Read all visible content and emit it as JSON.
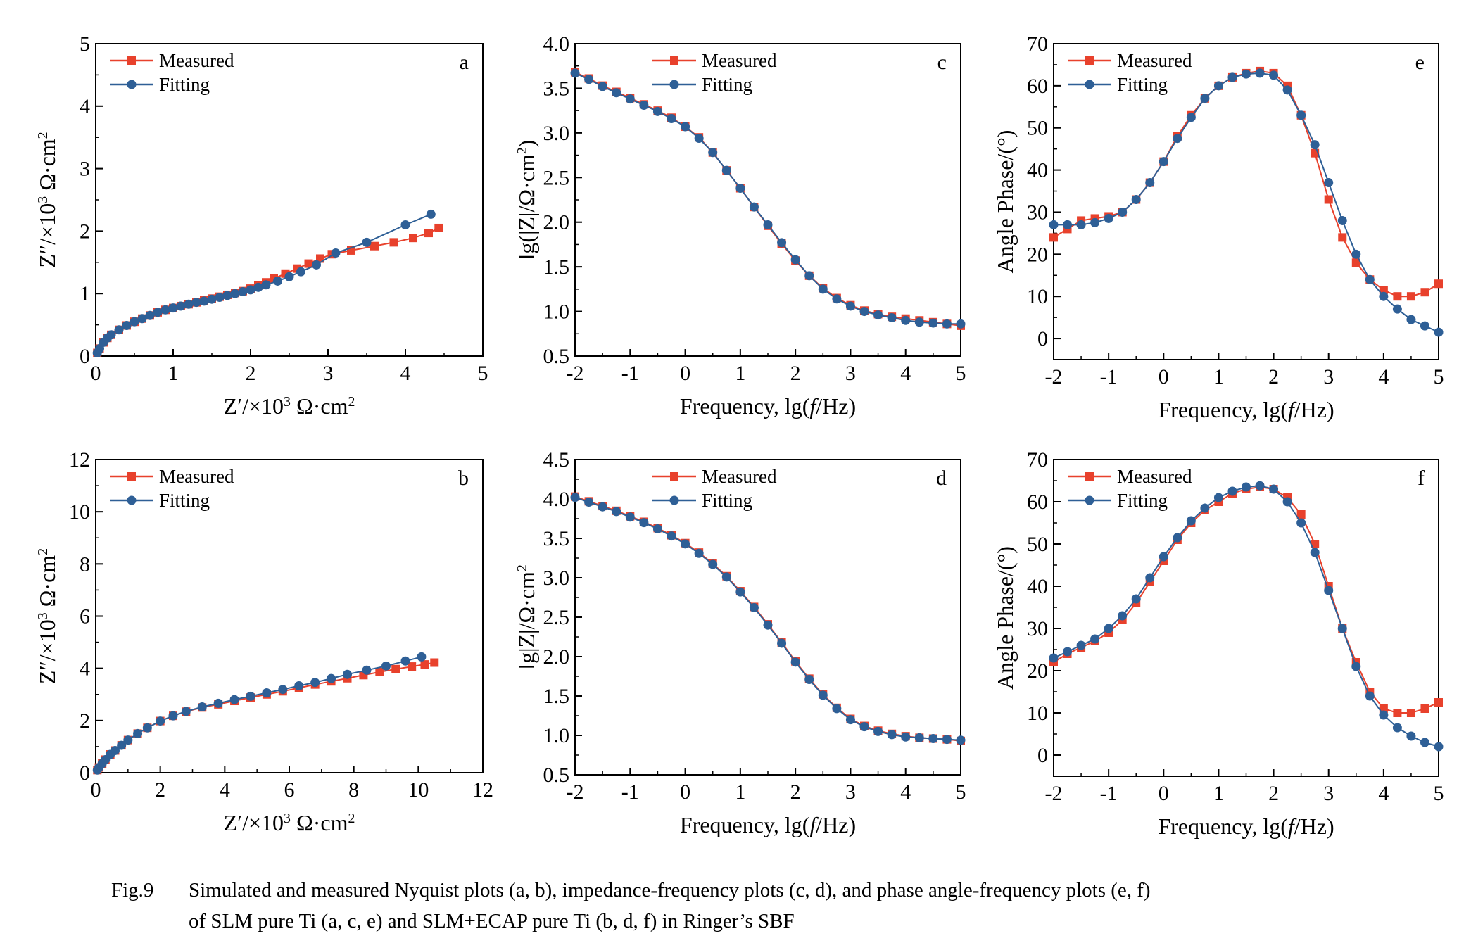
{
  "colors": {
    "measured": "#e8412c",
    "fitting": "#2e5f96",
    "axis": "#000000"
  },
  "caption": {
    "label": "Fig.9",
    "line1": "Simulated and measured Nyquist plots (a, b), impedance-frequency plots (c, d), and phase angle-frequency plots (e, f)",
    "line2": "of SLM pure Ti (a, c, e) and SLM+ECAP pure Ti (b, d, f) in Ringer’s SBF"
  },
  "chart_data": [
    {
      "id": "a",
      "type": "line",
      "panel_letter": "a",
      "xlabel": "Z′/×10³ Ω·cm²",
      "ylabel": "Z″/×10³ Ω·cm²",
      "xlim": [
        0,
        5
      ],
      "ylim": [
        0,
        5
      ],
      "xticks": [
        0,
        1,
        2,
        3,
        4,
        5
      ],
      "yticks": [
        0,
        1,
        2,
        3,
        4,
        5
      ],
      "legend_position": "top-left",
      "series": [
        {
          "name": "Measured",
          "marker": "square",
          "x": [
            0.02,
            0.05,
            0.1,
            0.15,
            0.2,
            0.3,
            0.4,
            0.5,
            0.6,
            0.7,
            0.8,
            0.9,
            1.0,
            1.1,
            1.2,
            1.3,
            1.4,
            1.5,
            1.6,
            1.7,
            1.8,
            1.9,
            2.0,
            2.1,
            2.2,
            2.3,
            2.45,
            2.6,
            2.75,
            2.9,
            3.05,
            3.3,
            3.6,
            3.85,
            4.1,
            4.3,
            4.43
          ],
          "y": [
            0.05,
            0.12,
            0.22,
            0.29,
            0.34,
            0.42,
            0.49,
            0.55,
            0.6,
            0.65,
            0.7,
            0.74,
            0.77,
            0.8,
            0.83,
            0.86,
            0.89,
            0.92,
            0.95,
            0.98,
            1.01,
            1.04,
            1.08,
            1.13,
            1.18,
            1.24,
            1.32,
            1.4,
            1.48,
            1.56,
            1.63,
            1.69,
            1.76,
            1.82,
            1.89,
            1.97,
            2.05
          ]
        },
        {
          "name": "Fitting",
          "marker": "circle",
          "x": [
            0.02,
            0.05,
            0.1,
            0.15,
            0.2,
            0.3,
            0.4,
            0.5,
            0.6,
            0.7,
            0.8,
            0.9,
            1.0,
            1.1,
            1.2,
            1.3,
            1.4,
            1.5,
            1.6,
            1.7,
            1.8,
            1.9,
            2.0,
            2.1,
            2.2,
            2.35,
            2.5,
            2.65,
            2.85,
            3.1,
            3.5,
            4.0,
            4.33
          ],
          "y": [
            0.05,
            0.12,
            0.22,
            0.29,
            0.34,
            0.42,
            0.49,
            0.55,
            0.6,
            0.65,
            0.7,
            0.74,
            0.77,
            0.8,
            0.83,
            0.86,
            0.88,
            0.91,
            0.94,
            0.97,
            1.0,
            1.03,
            1.06,
            1.1,
            1.14,
            1.2,
            1.27,
            1.35,
            1.46,
            1.65,
            1.82,
            2.1,
            2.27
          ]
        }
      ]
    },
    {
      "id": "b",
      "type": "line",
      "panel_letter": "b",
      "xlabel": "Z′/×10³ Ω·cm²",
      "ylabel": "Z″/×10³ Ω·cm²",
      "xlim": [
        0,
        12
      ],
      "ylim": [
        0,
        12
      ],
      "xticks": [
        0,
        2,
        4,
        6,
        8,
        10,
        12
      ],
      "yticks": [
        0,
        2,
        4,
        6,
        8,
        10,
        12
      ],
      "legend_position": "top-left",
      "series": [
        {
          "name": "Measured",
          "marker": "square",
          "x": [
            0.05,
            0.1,
            0.2,
            0.3,
            0.45,
            0.6,
            0.8,
            1.0,
            1.3,
            1.6,
            2.0,
            2.4,
            2.8,
            3.3,
            3.8,
            4.3,
            4.8,
            5.3,
            5.8,
            6.3,
            6.8,
            7.3,
            7.8,
            8.3,
            8.8,
            9.3,
            9.8,
            10.2,
            10.5
          ],
          "y": [
            0.1,
            0.2,
            0.35,
            0.5,
            0.7,
            0.85,
            1.05,
            1.25,
            1.5,
            1.72,
            1.98,
            2.18,
            2.34,
            2.5,
            2.62,
            2.75,
            2.88,
            3.0,
            3.12,
            3.25,
            3.38,
            3.5,
            3.62,
            3.74,
            3.86,
            3.97,
            4.07,
            4.15,
            4.22
          ]
        },
        {
          "name": "Fitting",
          "marker": "circle",
          "x": [
            0.05,
            0.1,
            0.2,
            0.3,
            0.45,
            0.6,
            0.8,
            1.0,
            1.3,
            1.6,
            2.0,
            2.4,
            2.8,
            3.3,
            3.8,
            4.3,
            4.8,
            5.3,
            5.8,
            6.3,
            6.8,
            7.3,
            7.8,
            8.4,
            9.0,
            9.6,
            10.1
          ],
          "y": [
            0.1,
            0.2,
            0.35,
            0.5,
            0.7,
            0.85,
            1.05,
            1.25,
            1.5,
            1.72,
            1.98,
            2.18,
            2.35,
            2.52,
            2.66,
            2.8,
            2.93,
            3.06,
            3.19,
            3.33,
            3.46,
            3.61,
            3.77,
            3.93,
            4.09,
            4.28,
            4.44
          ]
        }
      ]
    },
    {
      "id": "c",
      "type": "line",
      "panel_letter": "c",
      "xlabel": "Frequency, lg(f/Hz)",
      "ylabel": "lg(|Z|/Ω·cm²)",
      "xlim": [
        -2,
        5
      ],
      "ylim": [
        0.5,
        4.0
      ],
      "xticks": [
        -2,
        -1,
        0,
        1,
        2,
        3,
        4,
        5
      ],
      "yticks": [
        0.5,
        1.0,
        1.5,
        2.0,
        2.5,
        3.0,
        3.5,
        4.0
      ],
      "legend_position": "top-center",
      "series": [
        {
          "name": "Measured",
          "marker": "square",
          "x": [
            -2,
            -1.75,
            -1.5,
            -1.25,
            -1,
            -0.75,
            -0.5,
            -0.25,
            0,
            0.25,
            0.5,
            0.75,
            1,
            1.25,
            1.5,
            1.75,
            2,
            2.25,
            2.5,
            2.75,
            3,
            3.25,
            3.5,
            3.75,
            4,
            4.25,
            4.5,
            4.75,
            5
          ],
          "y": [
            3.68,
            3.61,
            3.53,
            3.46,
            3.39,
            3.32,
            3.25,
            3.17,
            3.07,
            2.95,
            2.78,
            2.58,
            2.38,
            2.17,
            1.96,
            1.76,
            1.57,
            1.4,
            1.26,
            1.15,
            1.07,
            1.01,
            0.97,
            0.94,
            0.92,
            0.9,
            0.88,
            0.86,
            0.84
          ]
        },
        {
          "name": "Fitting",
          "marker": "circle",
          "x": [
            -2,
            -1.75,
            -1.5,
            -1.25,
            -1,
            -0.75,
            -0.5,
            -0.25,
            0,
            0.25,
            0.5,
            0.75,
            1,
            1.25,
            1.5,
            1.75,
            2,
            2.25,
            2.5,
            2.75,
            3,
            3.25,
            3.5,
            3.75,
            4,
            4.25,
            4.5,
            4.75,
            5
          ],
          "y": [
            3.67,
            3.6,
            3.52,
            3.45,
            3.38,
            3.31,
            3.24,
            3.16,
            3.07,
            2.94,
            2.78,
            2.58,
            2.38,
            2.17,
            1.97,
            1.77,
            1.58,
            1.4,
            1.25,
            1.14,
            1.06,
            1.0,
            0.96,
            0.93,
            0.9,
            0.88,
            0.87,
            0.86,
            0.86
          ]
        }
      ]
    },
    {
      "id": "d",
      "type": "line",
      "panel_letter": "d",
      "xlabel": "Frequency, lg(f/Hz)",
      "ylabel": "lg|Z|/Ω·cm²",
      "xlim": [
        -2,
        5
      ],
      "ylim": [
        0.5,
        4.5
      ],
      "xticks": [
        -2,
        -1,
        0,
        1,
        2,
        3,
        4,
        5
      ],
      "yticks": [
        0.5,
        1.0,
        1.5,
        2.0,
        2.5,
        3.0,
        3.5,
        4.0,
        4.5
      ],
      "legend_position": "top-center",
      "series": [
        {
          "name": "Measured",
          "marker": "square",
          "x": [
            -2,
            -1.75,
            -1.5,
            -1.25,
            -1,
            -0.75,
            -0.5,
            -0.25,
            0,
            0.25,
            0.5,
            0.75,
            1,
            1.25,
            1.5,
            1.75,
            2,
            2.25,
            2.5,
            2.75,
            3,
            3.25,
            3.5,
            3.75,
            4,
            4.25,
            4.5,
            4.75,
            5
          ],
          "y": [
            4.03,
            3.97,
            3.91,
            3.85,
            3.78,
            3.71,
            3.63,
            3.54,
            3.44,
            3.32,
            3.18,
            3.02,
            2.83,
            2.63,
            2.41,
            2.18,
            1.94,
            1.72,
            1.52,
            1.35,
            1.21,
            1.12,
            1.06,
            1.02,
            0.99,
            0.97,
            0.96,
            0.95,
            0.93
          ]
        },
        {
          "name": "Fitting",
          "marker": "circle",
          "x": [
            -2,
            -1.75,
            -1.5,
            -1.25,
            -1,
            -0.75,
            -0.5,
            -0.25,
            0,
            0.25,
            0.5,
            0.75,
            1,
            1.25,
            1.5,
            1.75,
            2,
            2.25,
            2.5,
            2.75,
            3,
            3.25,
            3.5,
            3.75,
            4,
            4.25,
            4.5,
            4.75,
            5
          ],
          "y": [
            4.02,
            3.96,
            3.9,
            3.84,
            3.77,
            3.7,
            3.62,
            3.53,
            3.43,
            3.31,
            3.17,
            3.01,
            2.82,
            2.62,
            2.4,
            2.17,
            1.93,
            1.71,
            1.51,
            1.34,
            1.2,
            1.11,
            1.05,
            1.01,
            0.98,
            0.97,
            0.96,
            0.95,
            0.94
          ]
        }
      ]
    },
    {
      "id": "e",
      "type": "line",
      "panel_letter": "e",
      "xlabel": "Frequency, lg(f/Hz)",
      "ylabel": "Angle Phase/(°)",
      "xlim": [
        -2,
        5
      ],
      "ylim": [
        -5,
        70
      ],
      "xticks": [
        -2,
        -1,
        0,
        1,
        2,
        3,
        4,
        5
      ],
      "yticks": [
        0,
        10,
        20,
        30,
        40,
        50,
        60,
        70
      ],
      "legend_position": "top-left",
      "series": [
        {
          "name": "Measured",
          "marker": "square",
          "x": [
            -2,
            -1.75,
            -1.5,
            -1.25,
            -1,
            -0.75,
            -0.5,
            -0.25,
            0,
            0.25,
            0.5,
            0.75,
            1,
            1.25,
            1.5,
            1.75,
            2,
            2.25,
            2.5,
            2.75,
            3,
            3.25,
            3.5,
            3.75,
            4,
            4.25,
            4.5,
            4.75,
            5
          ],
          "y": [
            24,
            26,
            28,
            28.5,
            29,
            30,
            33,
            37,
            42,
            48,
            53,
            57,
            60,
            62,
            63,
            63.5,
            63,
            60,
            53,
            44,
            33,
            24,
            18,
            14,
            11.5,
            10,
            10,
            11,
            13
          ]
        },
        {
          "name": "Fitting",
          "marker": "circle",
          "x": [
            -2,
            -1.75,
            -1.5,
            -1.25,
            -1,
            -0.75,
            -0.5,
            -0.25,
            0,
            0.25,
            0.5,
            0.75,
            1,
            1.25,
            1.5,
            1.75,
            2,
            2.25,
            2.5,
            2.75,
            3,
            3.25,
            3.5,
            3.75,
            4,
            4.25,
            4.5,
            4.75,
            5
          ],
          "y": [
            27,
            27,
            27,
            27.5,
            28.5,
            30,
            33,
            37,
            42,
            47.5,
            52.5,
            57,
            60,
            62,
            62.8,
            63,
            62.5,
            59,
            53,
            46,
            37,
            28,
            20,
            14,
            10,
            7,
            4.5,
            3,
            1.5
          ]
        }
      ]
    },
    {
      "id": "f",
      "type": "line",
      "panel_letter": "f",
      "xlabel": "Frequency, lg(f/Hz)",
      "ylabel": "Angle Phase/(°)",
      "xlim": [
        -2,
        5
      ],
      "ylim": [
        -5,
        70
      ],
      "xticks": [
        -2,
        -1,
        0,
        1,
        2,
        3,
        4,
        5
      ],
      "yticks": [
        0,
        10,
        20,
        30,
        40,
        50,
        60,
        70
      ],
      "legend_position": "top-left",
      "series": [
        {
          "name": "Measured",
          "marker": "square",
          "x": [
            -2,
            -1.75,
            -1.5,
            -1.25,
            -1,
            -0.75,
            -0.5,
            -0.25,
            0,
            0.25,
            0.5,
            0.75,
            1,
            1.25,
            1.5,
            1.75,
            2,
            2.25,
            2.5,
            2.75,
            3,
            3.25,
            3.5,
            3.75,
            4,
            4.25,
            4.5,
            4.75,
            5
          ],
          "y": [
            22,
            24,
            25.5,
            27,
            29,
            32,
            36,
            41,
            46,
            51,
            55,
            58,
            60,
            62,
            63,
            63.5,
            63,
            61,
            57,
            50,
            40,
            30,
            22,
            15,
            11,
            10,
            10,
            11,
            12.5
          ]
        },
        {
          "name": "Fitting",
          "marker": "circle",
          "x": [
            -2,
            -1.75,
            -1.5,
            -1.25,
            -1,
            -0.75,
            -0.5,
            -0.25,
            0,
            0.25,
            0.5,
            0.75,
            1,
            1.25,
            1.5,
            1.75,
            2,
            2.25,
            2.5,
            2.75,
            3,
            3.25,
            3.5,
            3.75,
            4,
            4.25,
            4.5,
            4.75,
            5
          ],
          "y": [
            23,
            24.5,
            26,
            27.5,
            30,
            33,
            37,
            42,
            47,
            51.5,
            55.5,
            58.5,
            61,
            62.5,
            63.5,
            63.8,
            63,
            60,
            55,
            48,
            39,
            30,
            21,
            14,
            9.5,
            6.5,
            4.5,
            3,
            2
          ]
        }
      ]
    }
  ]
}
